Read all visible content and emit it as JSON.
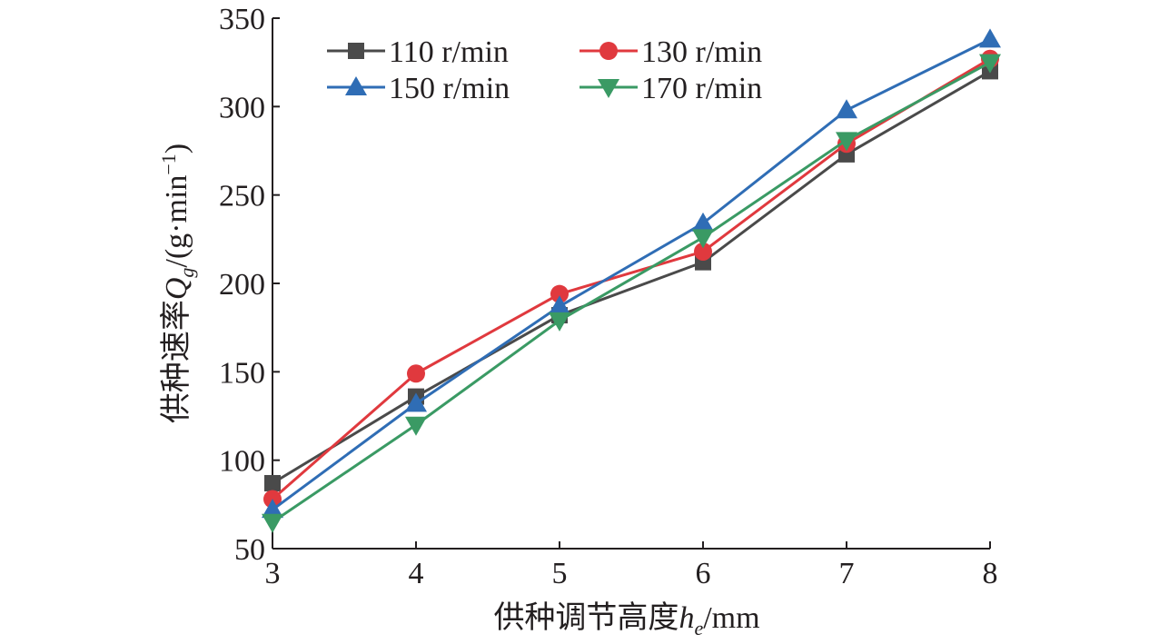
{
  "chart_data": {
    "type": "line",
    "xlabel": "供种调节高度",
    "xlabel_symbol": "h",
    "xlabel_subscript": "e",
    "xlabel_unit": "/mm",
    "ylabel": "供种速率",
    "ylabel_symbol": "Q",
    "ylabel_subscript": "g",
    "ylabel_unit": "/(g·min",
    "ylabel_unit_sup": "−1",
    "ylabel_unit_close": ")",
    "x": [
      3,
      4,
      5,
      6,
      7,
      8
    ],
    "xlim": [
      3,
      8
    ],
    "ylim": [
      50,
      350
    ],
    "xticks": [
      "3",
      "4",
      "5",
      "6",
      "7",
      "8"
    ],
    "yticks": [
      "50",
      "100",
      "150",
      "200",
      "250",
      "300",
      "350"
    ],
    "legend_position": "top-left",
    "grid": false,
    "series": [
      {
        "name": "110 r/min",
        "marker": "square",
        "color": "#4a4a4a",
        "values": [
          87,
          136,
          182,
          212,
          273,
          320
        ]
      },
      {
        "name": "130 r/min",
        "marker": "circle",
        "color": "#e0393e",
        "values": [
          78,
          149,
          194,
          218,
          279,
          327
        ]
      },
      {
        "name": "150 r/min",
        "marker": "triangle-up",
        "color": "#2f6db5",
        "values": [
          72,
          132,
          187,
          234,
          298,
          338
        ]
      },
      {
        "name": "170 r/min",
        "marker": "triangle-down",
        "color": "#3a9a64",
        "values": [
          65,
          120,
          179,
          226,
          281,
          325
        ]
      }
    ]
  }
}
